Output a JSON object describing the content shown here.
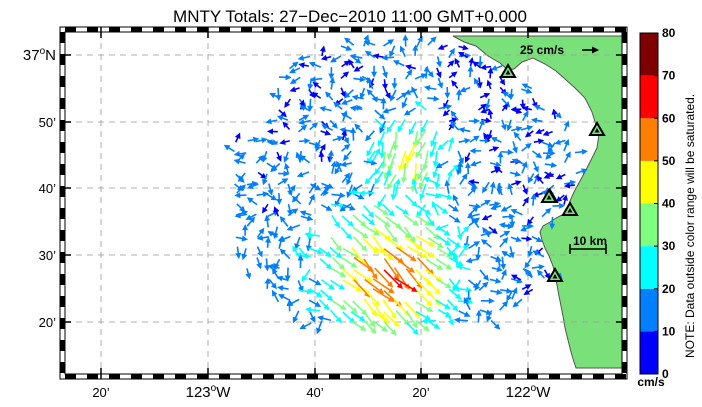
{
  "title": "MNTY Totals: 27−Dec−2010 11:00 GMT+0.000",
  "lat_labels": [
    {
      "pre": "37",
      "sup": "o",
      "post": "N"
    },
    {
      "pre": "50’",
      "sup": "",
      "post": ""
    },
    {
      "pre": "40’",
      "sup": "",
      "post": ""
    },
    {
      "pre": "30’",
      "sup": "",
      "post": ""
    },
    {
      "pre": "20’",
      "sup": "",
      "post": ""
    }
  ],
  "lon_labels": [
    {
      "pre": "20’",
      "sup": "",
      "post": ""
    },
    {
      "pre": "123",
      "sup": "o",
      "post": "W"
    },
    {
      "pre": "40’",
      "sup": "",
      "post": ""
    },
    {
      "pre": "20’",
      "sup": "",
      "post": ""
    },
    {
      "pre": "122",
      "sup": "o",
      "post": "W"
    }
  ],
  "reference_vector_label": "25 cm/s",
  "distance_scale_label": "10 km",
  "colorbar": {
    "ticks": [
      "0",
      "10",
      "20",
      "30",
      "40",
      "50",
      "60",
      "70",
      "80"
    ],
    "unit": "cm/s",
    "note": "NOTE: Data outside color range will be saturated.",
    "colors": [
      "#0000ff",
      "#007fff",
      "#00ffff",
      "#7fff7f",
      "#ffff00",
      "#ff7f00",
      "#ff0000",
      "#7f0000"
    ]
  },
  "colors": {
    "land": "#7ae07a",
    "coast": "#555555",
    "grid": "#999999",
    "site_marker": "#000000"
  },
  "map_elements": {
    "land_color_name": "light-green",
    "site_icon": "triangle-icon",
    "site_count": 6
  }
}
